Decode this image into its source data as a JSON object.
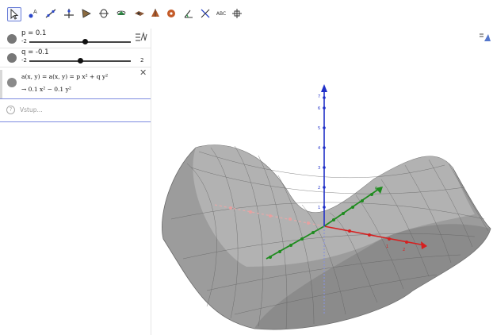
{
  "toolbar": {
    "tools": [
      {
        "name": "move-tool-icon",
        "active": true
      },
      {
        "name": "point-tool-icon"
      },
      {
        "name": "line-tool-icon"
      },
      {
        "name": "perpendicular-line-tool-icon"
      },
      {
        "name": "polygon-tool-icon"
      },
      {
        "name": "circle-with-axis-tool-icon"
      },
      {
        "name": "intersect-surfaces-tool-icon"
      },
      {
        "name": "plane-tool-icon"
      },
      {
        "name": "pyramid-tool-icon"
      },
      {
        "name": "sphere-tool-icon"
      },
      {
        "name": "angle-tool-icon"
      },
      {
        "name": "reflect-tool-icon"
      },
      {
        "name": "text-tool-icon",
        "text": "ABC"
      },
      {
        "name": "rotate-view-tool-icon"
      }
    ]
  },
  "algebra": {
    "p": {
      "label": "p = 0.1",
      "min": "-2",
      "value": 0.1
    },
    "q": {
      "label": "q = -0.1",
      "min": "-2",
      "max": "2",
      "value": -0.1
    },
    "function": {
      "definition": "a(x, y) = a(x, y) = p x² + q y²",
      "result": "→  0.1 x² − 0.1 y²"
    },
    "input_placeholder": "Vstup..."
  },
  "graphics": {
    "axes": {
      "z_ticks": [
        "1",
        "2",
        "3",
        "4",
        "5",
        "6",
        "7"
      ],
      "y_ticks": [
        "1",
        "2",
        "3",
        "4",
        "5",
        "6"
      ],
      "x_ticks": [
        "1",
        "2",
        "3"
      ]
    },
    "colors": {
      "x_axis": "#d62020",
      "y_axis": "#1f8c1f",
      "z_axis": "#2030c8",
      "surface": "#9a9a9a"
    }
  }
}
